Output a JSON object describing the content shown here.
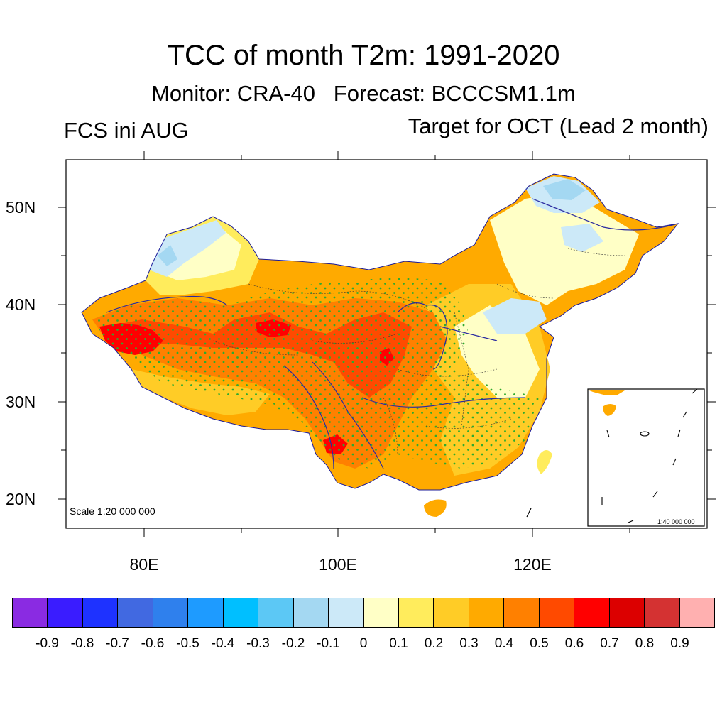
{
  "title": "TCC of month T2m: 1991-2020",
  "subtitle": "Monitor: CRA-40   Forecast: BCCCSM1.1m",
  "left_label": "FCS ini AUG",
  "right_label": "Target for OCT (Lead 2 month)",
  "map": {
    "scale_label": "Scale 1:20 000 000",
    "inset_scale_label": "1:40 000 000",
    "lat_ticks": [
      "50N",
      "40N",
      "30N",
      "20N"
    ],
    "lon_ticks": [
      "80E",
      "100E",
      "120E"
    ]
  },
  "colorbar": {
    "colors": [
      "#8a2be2",
      "#3a1cff",
      "#1e32ff",
      "#4169e1",
      "#2f80ed",
      "#1e9bff",
      "#00bfff",
      "#5cc8f5",
      "#a4d8f2",
      "#cce9f8",
      "#ffffc6",
      "#ffec5c",
      "#ffcc26",
      "#ffaa00",
      "#ff8000",
      "#ff4a00",
      "#ff0000",
      "#dc0000",
      "#d43232",
      "#ffb0b0"
    ],
    "labels": [
      "-0.9",
      "-0.8",
      "-0.7",
      "-0.6",
      "-0.5",
      "-0.4",
      "-0.3",
      "-0.2",
      "-0.1",
      "0",
      "0.1",
      "0.2",
      "0.3",
      "0.4",
      "0.5",
      "0.6",
      "0.7",
      "0.8",
      "0.9"
    ]
  }
}
